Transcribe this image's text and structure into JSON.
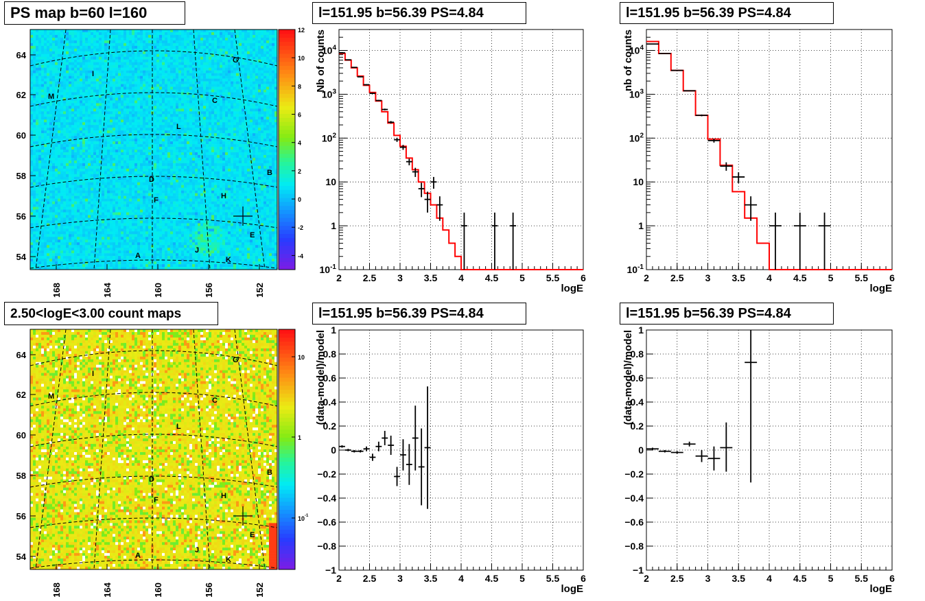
{
  "panel_titles": {
    "map_top": "PS map b=60 l=160",
    "map_bottom": "2.50<logE<3.00 count maps",
    "spec_tl": "l=151.95 b=56.39 PS=4.84",
    "spec_tr": "l=151.95 b=56.39 PS=4.84",
    "res_bl": "l=151.95 b=56.39 PS=4.84",
    "res_br": "l=151.95 b=56.39 PS=4.84"
  },
  "colors": {
    "model": "#ff0000",
    "data": "#000000",
    "grid": "#000000"
  },
  "chart_data": [
    {
      "id": "map_top",
      "type": "heatmap",
      "title": "PS map b=60 l=160",
      "x_ticks": [
        "168",
        "164",
        "160",
        "156",
        "152"
      ],
      "y_ticks": [
        "54",
        "56",
        "58",
        "60",
        "62",
        "64"
      ],
      "colorbar_ticks": [
        "-4",
        "-2",
        "0",
        "2",
        "4",
        "6",
        "8",
        "10",
        "12"
      ],
      "zlim": [
        -5,
        12
      ],
      "source_labels": [
        "A",
        "B",
        "C",
        "D",
        "E",
        "F",
        "G",
        "H",
        "I",
        "J",
        "K",
        "L",
        "M"
      ]
    },
    {
      "id": "map_bottom",
      "type": "heatmap",
      "title": "2.50<logE<3.00 count maps",
      "x_ticks": [
        "168",
        "164",
        "160",
        "156",
        "152"
      ],
      "y_ticks": [
        "54",
        "56",
        "58",
        "60",
        "62",
        "64"
      ],
      "colorbar_ticks": [
        "10",
        "1",
        "10^-1"
      ],
      "zscale": "log",
      "source_labels": [
        "A",
        "B",
        "C",
        "D",
        "E",
        "F",
        "G",
        "H",
        "I",
        "J",
        "K",
        "L",
        "M"
      ]
    },
    {
      "id": "spec_tl",
      "type": "line",
      "title": "l=151.95 b=56.39 PS=4.84",
      "xlabel": "logE",
      "ylabel": "Nb of counts",
      "xlim": [
        2,
        6
      ],
      "ylim": [
        0.1,
        30000
      ],
      "yscale": "log",
      "x_ticks": [
        "2",
        "2.5",
        "3",
        "3.5",
        "4",
        "4.5",
        "5",
        "5.5",
        "6"
      ],
      "y_ticks": [
        "10^-1",
        "1",
        "10",
        "10^2",
        "10^3",
        "10^4"
      ],
      "grid": true,
      "model": {
        "edges": [
          2,
          2.1,
          2.2,
          2.3,
          2.4,
          2.5,
          2.6,
          2.7,
          2.8,
          2.9,
          3.0,
          3.1,
          3.2,
          3.3,
          3.4,
          3.5,
          3.6,
          3.7,
          3.8,
          3.9,
          4.0,
          4.1,
          6
        ],
        "values": [
          8500,
          6000,
          4000,
          2600,
          1600,
          1100,
          700,
          400,
          220,
          115,
          65,
          35,
          19,
          10,
          5.5,
          3,
          1.5,
          0.8,
          0.4,
          0.2,
          0.1,
          0.1
        ]
      },
      "data_points": [
        {
          "x": 2.05,
          "y": 8800,
          "xerr": 0.05,
          "lo": 8700,
          "hi": 8900
        },
        {
          "x": 2.15,
          "y": 6100,
          "xerr": 0.05,
          "lo": 6000,
          "hi": 6200
        },
        {
          "x": 2.25,
          "y": 4100,
          "xerr": 0.05,
          "lo": 4000,
          "hi": 4200
        },
        {
          "x": 2.35,
          "y": 2500,
          "xerr": 0.05,
          "lo": 2450,
          "hi": 2550
        },
        {
          "x": 2.45,
          "y": 1650,
          "xerr": 0.05,
          "lo": 1600,
          "hi": 1700
        },
        {
          "x": 2.55,
          "y": 1050,
          "xerr": 0.05,
          "lo": 1020,
          "hi": 1080
        },
        {
          "x": 2.65,
          "y": 720,
          "xerr": 0.05,
          "lo": 700,
          "hi": 745
        },
        {
          "x": 2.75,
          "y": 450,
          "xerr": 0.05,
          "lo": 430,
          "hi": 470
        },
        {
          "x": 2.85,
          "y": 230,
          "xerr": 0.05,
          "lo": 215,
          "hi": 245
        },
        {
          "x": 2.95,
          "y": 92,
          "xerr": 0.05,
          "lo": 82,
          "hi": 102
        },
        {
          "x": 3.05,
          "y": 62,
          "xerr": 0.05,
          "lo": 54,
          "hi": 70
        },
        {
          "x": 3.15,
          "y": 29,
          "xerr": 0.05,
          "lo": 24,
          "hi": 34
        },
        {
          "x": 3.25,
          "y": 17,
          "xerr": 0.05,
          "lo": 13,
          "hi": 21
        },
        {
          "x": 3.35,
          "y": 7,
          "xerr": 0.05,
          "lo": 4.5,
          "hi": 9.6
        },
        {
          "x": 3.45,
          "y": 4,
          "xerr": 0.05,
          "lo": 2,
          "hi": 6
        },
        {
          "x": 3.55,
          "y": 10,
          "xerr": 0.05,
          "lo": 7,
          "hi": 13
        },
        {
          "x": 3.65,
          "y": 3,
          "xerr": 0.05,
          "lo": 1.3,
          "hi": 4.7
        },
        {
          "x": 4.05,
          "y": 1,
          "xerr": 0.05,
          "lo": 0.1,
          "hi": 2
        },
        {
          "x": 4.55,
          "y": 1,
          "xerr": 0.05,
          "lo": 0.1,
          "hi": 2
        },
        {
          "x": 4.85,
          "y": 1,
          "xerr": 0.05,
          "lo": 0.1,
          "hi": 2
        }
      ]
    },
    {
      "id": "spec_tr",
      "type": "line",
      "title": "l=151.95 b=56.39 PS=4.84",
      "xlabel": "logE",
      "ylabel": "nb of counts",
      "xlim": [
        2,
        6
      ],
      "ylim": [
        0.1,
        30000
      ],
      "yscale": "log",
      "x_ticks": [
        "2",
        "2.5",
        "3",
        "3.5",
        "4",
        "4.5",
        "5",
        "5.5",
        "6"
      ],
      "y_ticks": [
        "10^-1",
        "1",
        "10",
        "10^2",
        "10^3",
        "10^4"
      ],
      "grid": true,
      "model": {
        "edges": [
          2,
          2.2,
          2.4,
          2.6,
          2.8,
          3.0,
          3.2,
          3.4,
          3.6,
          3.8,
          4.0,
          4.2,
          6
        ],
        "values": [
          16000,
          8500,
          3500,
          1200,
          330,
          95,
          24,
          6,
          1.5,
          0.4,
          0.1,
          0.1
        ]
      },
      "data_points": [
        {
          "x": 2.1,
          "y": 14000,
          "xerr": 0.1,
          "lo": 13800,
          "hi": 14200
        },
        {
          "x": 2.3,
          "y": 8500,
          "xerr": 0.1,
          "lo": 8400,
          "hi": 8600
        },
        {
          "x": 2.5,
          "y": 3500,
          "xerr": 0.1,
          "lo": 3450,
          "hi": 3550
        },
        {
          "x": 2.7,
          "y": 1200,
          "xerr": 0.1,
          "lo": 1170,
          "hi": 1230
        },
        {
          "x": 2.9,
          "y": 330,
          "xerr": 0.1,
          "lo": 315,
          "hi": 345
        },
        {
          "x": 3.1,
          "y": 88,
          "xerr": 0.1,
          "lo": 79,
          "hi": 97
        },
        {
          "x": 3.3,
          "y": 23,
          "xerr": 0.1,
          "lo": 18,
          "hi": 28
        },
        {
          "x": 3.5,
          "y": 13,
          "xerr": 0.1,
          "lo": 9.4,
          "hi": 16.6
        },
        {
          "x": 3.7,
          "y": 3,
          "xerr": 0.1,
          "lo": 1.3,
          "hi": 4.7
        },
        {
          "x": 4.1,
          "y": 1,
          "xerr": 0.1,
          "lo": 0.1,
          "hi": 2
        },
        {
          "x": 4.5,
          "y": 1,
          "xerr": 0.1,
          "lo": 0.1,
          "hi": 2
        },
        {
          "x": 4.9,
          "y": 1,
          "xerr": 0.1,
          "lo": 0.1,
          "hi": 2
        }
      ]
    },
    {
      "id": "res_bl",
      "type": "scatter",
      "title": "l=151.95 b=56.39 PS=4.84",
      "xlabel": "logE",
      "ylabel": "(data-model)/model",
      "xlim": [
        2,
        6
      ],
      "ylim": [
        -1,
        1
      ],
      "x_ticks": [
        "2",
        "2.5",
        "3",
        "3.5",
        "4",
        "4.5",
        "5",
        "5.5",
        "6"
      ],
      "y_ticks": [
        "−1",
        "−0.8",
        "−0.6",
        "−0.4",
        "−0.2",
        "0",
        "0.2",
        "0.4",
        "0.6",
        "0.8",
        "1"
      ],
      "grid": true,
      "data_points": [
        {
          "x": 2.05,
          "y": 0.03,
          "xerr": 0.05,
          "lo": 0.02,
          "hi": 0.04
        },
        {
          "x": 2.15,
          "y": 0.0,
          "xerr": 0.05,
          "lo": -0.01,
          "hi": 0.01
        },
        {
          "x": 2.25,
          "y": -0.01,
          "xerr": 0.05,
          "lo": -0.02,
          "hi": 0.0
        },
        {
          "x": 2.35,
          "y": -0.01,
          "xerr": 0.05,
          "lo": -0.02,
          "hi": 0.0
        },
        {
          "x": 2.45,
          "y": 0.01,
          "xerr": 0.05,
          "lo": -0.01,
          "hi": 0.03
        },
        {
          "x": 2.55,
          "y": -0.06,
          "xerr": 0.05,
          "lo": -0.09,
          "hi": -0.03
        },
        {
          "x": 2.65,
          "y": 0.03,
          "xerr": 0.05,
          "lo": -0.01,
          "hi": 0.07
        },
        {
          "x": 2.75,
          "y": 0.1,
          "xerr": 0.05,
          "lo": 0.04,
          "hi": 0.16
        },
        {
          "x": 2.85,
          "y": 0.04,
          "xerr": 0.05,
          "lo": -0.04,
          "hi": 0.12
        },
        {
          "x": 2.95,
          "y": -0.22,
          "xerr": 0.05,
          "lo": -0.3,
          "hi": -0.14
        },
        {
          "x": 3.05,
          "y": -0.04,
          "xerr": 0.05,
          "lo": -0.17,
          "hi": 0.09
        },
        {
          "x": 3.15,
          "y": -0.12,
          "xerr": 0.05,
          "lo": -0.29,
          "hi": 0.05
        },
        {
          "x": 3.25,
          "y": 0.1,
          "xerr": 0.05,
          "lo": -0.17,
          "hi": 0.37
        },
        {
          "x": 3.35,
          "y": -0.14,
          "xerr": 0.05,
          "lo": -0.46,
          "hi": 0.18
        },
        {
          "x": 3.45,
          "y": 0.02,
          "xerr": 0.05,
          "lo": -0.49,
          "hi": 0.53
        }
      ]
    },
    {
      "id": "res_br",
      "type": "scatter",
      "title": "l=151.95 b=56.39 PS=4.84",
      "xlabel": "logE",
      "ylabel": "(data-model)/model",
      "xlim": [
        2,
        6
      ],
      "ylim": [
        -1,
        1
      ],
      "x_ticks": [
        "2",
        "2.5",
        "3",
        "3.5",
        "4",
        "4.5",
        "5",
        "5.5",
        "6"
      ],
      "y_ticks": [
        "−1",
        "−0.8",
        "−0.6",
        "−0.4",
        "−0.2",
        "0",
        "0.2",
        "0.4",
        "0.6",
        "0.8",
        "1"
      ],
      "grid": true,
      "data_points": [
        {
          "x": 2.1,
          "y": 0.01,
          "xerr": 0.1,
          "lo": 0.0,
          "hi": 0.02
        },
        {
          "x": 2.3,
          "y": -0.01,
          "xerr": 0.1,
          "lo": -0.02,
          "hi": 0.0
        },
        {
          "x": 2.5,
          "y": -0.02,
          "xerr": 0.1,
          "lo": -0.03,
          "hi": -0.01
        },
        {
          "x": 2.7,
          "y": 0.05,
          "xerr": 0.1,
          "lo": 0.03,
          "hi": 0.07
        },
        {
          "x": 2.9,
          "y": -0.05,
          "xerr": 0.1,
          "lo": -0.1,
          "hi": 0.0
        },
        {
          "x": 3.1,
          "y": -0.07,
          "xerr": 0.1,
          "lo": -0.17,
          "hi": 0.03
        },
        {
          "x": 3.3,
          "y": 0.02,
          "xerr": 0.1,
          "lo": -0.18,
          "hi": 0.23
        },
        {
          "x": 3.7,
          "y": 0.73,
          "xerr": 0.1,
          "lo": -0.27,
          "hi": 1.0
        }
      ]
    }
  ]
}
